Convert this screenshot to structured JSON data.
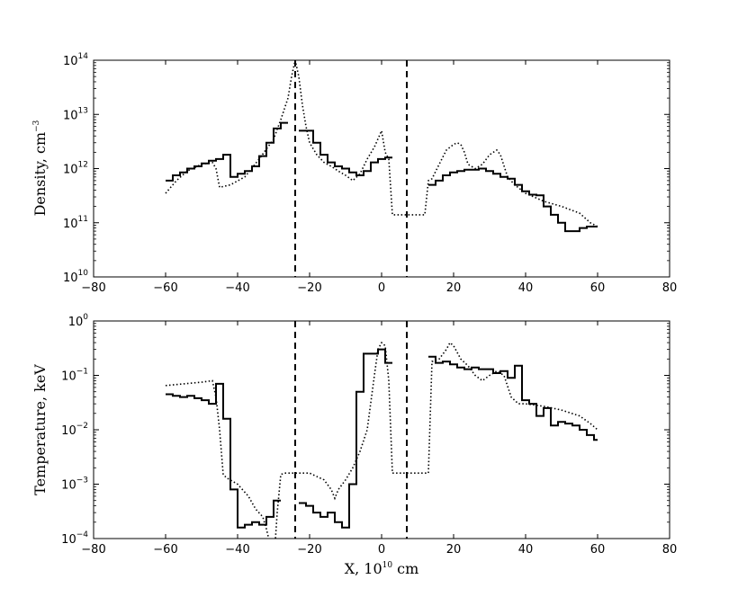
{
  "chart_data": [
    {
      "type": "line",
      "ylabel": "Density, cm",
      "ylabel_sup": "−3",
      "yscale": "log",
      "xlim": [
        -80,
        80
      ],
      "ylim_exp": [
        10,
        14
      ],
      "xticks": [
        -80,
        -60,
        -40,
        -20,
        0,
        20,
        40,
        60,
        80
      ],
      "yticks_exp": [
        10,
        11,
        12,
        13,
        14
      ],
      "tick_base": "10",
      "vlines": [
        -24,
        7
      ],
      "series": [
        {
          "style": "solid step",
          "segments": [
            {
              "x": [
                -60,
                -58,
                -56,
                -54,
                -52,
                -50,
                -48,
                -46,
                -44,
                -42,
                -40,
                -38,
                -36,
                -34,
                -32,
                -30,
                -28,
                -26
              ],
              "y": [
                600000000000.0,
                750000000000.0,
                850000000000.0,
                1000000000000.0,
                1100000000000.0,
                1250000000000.0,
                1400000000000.0,
                1500000000000.0,
                1800000000000.0,
                700000000000.0,
                800000000000.0,
                900000000000.0,
                1100000000000.0,
                1700000000000.0,
                3000000000000.0,
                5500000000000.0,
                7000000000000.0,
                7000000000000.0
              ]
            },
            {
              "x": [
                -23,
                -21,
                -19,
                -17,
                -15,
                -13,
                -11,
                -9,
                -7,
                -5,
                -3,
                -1,
                1,
                3
              ],
              "y": [
                5000000000000.0,
                5000000000000.0,
                3000000000000.0,
                1800000000000.0,
                1300000000000.0,
                1100000000000.0,
                1000000000000.0,
                850000000000.0,
                750000000000.0,
                900000000000.0,
                1300000000000.0,
                1500000000000.0,
                1600000000000.0,
                1600000000000.0
              ]
            },
            {
              "x": [
                13,
                15,
                17,
                19,
                21,
                23,
                25,
                27,
                29,
                31,
                33,
                35,
                37,
                39,
                41,
                43,
                45,
                47,
                49,
                51,
                53,
                55,
                57,
                59,
                60
              ],
              "y": [
                500000000000.0,
                600000000000.0,
                750000000000.0,
                850000000000.0,
                900000000000.0,
                950000000000.0,
                950000000000.0,
                1000000000000.0,
                900000000000.0,
                800000000000.0,
                700000000000.0,
                650000000000.0,
                500000000000.0,
                380000000000.0,
                330000000000.0,
                320000000000.0,
                200000000000.0,
                140000000000.0,
                100000000000.0,
                70000000000.0,
                70000000000.0,
                80000000000.0,
                85000000000.0,
                85000000000.0,
                85000000000.0
              ]
            }
          ]
        },
        {
          "style": "dotted",
          "segments": [
            {
              "x": [
                -60,
                -57,
                -54,
                -50,
                -47,
                -46,
                -45,
                -42,
                -38,
                -34,
                -30,
                -28,
                -26,
                -25,
                -24,
                -23,
                -22,
                -21,
                -20,
                -18,
                -16,
                -14,
                -12,
                -10,
                -8,
                -6,
                -4,
                -2,
                0,
                1,
                2,
                3,
                5,
                8,
                11,
                12,
                13,
                14,
                16,
                18,
                20,
                21,
                22,
                23,
                24,
                26,
                28,
                30,
                32,
                33,
                35,
                37,
                40,
                45,
                50,
                55,
                58,
                60
              ],
              "y": [
                350000000000.0,
                600000000000.0,
                900000000000.0,
                1200000000000.0,
                1300000000000.0,
                1000000000000.0,
                450000000000.0,
                500000000000.0,
                700000000000.0,
                1500000000000.0,
                3500000000000.0,
                8000000000000.0,
                20000000000000.0,
                50000000000000.0,
                100000000000000.0,
                50000000000000.0,
                15000000000000.0,
                6000000000000.0,
                3000000000000.0,
                1800000000000.0,
                1300000000000.0,
                1100000000000.0,
                900000000000.0,
                750000000000.0,
                600000000000.0,
                800000000000.0,
                1500000000000.0,
                2500000000000.0,
                5000000000000.0,
                2000000000000.0,
                1500000000000.0,
                140000000000.0,
                140000000000.0,
                140000000000.0,
                140000000000.0,
                140000000000.0,
                600000000000.0,
                650000000000.0,
                1200000000000.0,
                2200000000000.0,
                2800000000000.0,
                3000000000000.0,
                2800000000000.0,
                2000000000000.0,
                1200000000000.0,
                1000000000000.0,
                1200000000000.0,
                1800000000000.0,
                2200000000000.0,
                1800000000000.0,
                700000000000.0,
                500000000000.0,
                350000000000.0,
                250000000000.0,
                200000000000.0,
                150000000000.0,
                100000000000.0,
                85000000000.0
              ]
            }
          ]
        }
      ]
    },
    {
      "type": "line",
      "ylabel": "Temperature, keV",
      "xlabel": "X, 10",
      "xlabel_sup": "10",
      "xlabel_unit": " cm",
      "yscale": "log",
      "xlim": [
        -80,
        80
      ],
      "ylim_exp": [
        -4,
        0
      ],
      "xticks": [
        -80,
        -60,
        -40,
        -20,
        0,
        20,
        40,
        60,
        80
      ],
      "yticks_exp": [
        -4,
        -3,
        -2,
        -1,
        0
      ],
      "tick_base": "10",
      "vlines": [
        -24,
        7
      ],
      "series": [
        {
          "style": "solid step",
          "segments": [
            {
              "x": [
                -60,
                -58,
                -56,
                -54,
                -52,
                -50,
                -48,
                -46,
                -44,
                -42,
                -40,
                -38,
                -36,
                -34,
                -32,
                -30,
                -28
              ],
              "y": [
                0.045,
                0.042,
                0.04,
                0.042,
                0.038,
                0.035,
                0.03,
                0.07,
                0.016,
                0.0008,
                0.00016,
                0.00018,
                0.0002,
                0.00018,
                0.00025,
                0.0005,
                0.0005
              ]
            },
            {
              "x": [
                -23,
                -21,
                -19,
                -17,
                -15,
                -13,
                -11,
                -9,
                -7,
                -5,
                -3,
                -1,
                1,
                3
              ],
              "y": [
                0.00045,
                0.0004,
                0.0003,
                0.00025,
                0.0003,
                0.0002,
                0.00016,
                0.001,
                0.05,
                0.25,
                0.25,
                0.3,
                0.17,
                0.17
              ]
            },
            {
              "x": [
                13,
                15,
                17,
                19,
                21,
                23,
                25,
                27,
                29,
                31,
                33,
                35,
                37,
                39,
                41,
                43,
                45,
                47,
                49,
                51,
                53,
                55,
                57,
                59,
                60
              ],
              "y": [
                0.22,
                0.17,
                0.18,
                0.16,
                0.14,
                0.13,
                0.14,
                0.13,
                0.13,
                0.11,
                0.12,
                0.09,
                0.15,
                0.035,
                0.03,
                0.018,
                0.025,
                0.012,
                0.014,
                0.013,
                0.012,
                0.01,
                0.008,
                0.0065,
                0.0065
              ]
            }
          ]
        },
        {
          "style": "dotted",
          "segments": [
            {
              "x": [
                -60,
                -55,
                -50,
                -47,
                -46,
                -45,
                -44,
                -43,
                -40,
                -37,
                -35,
                -33,
                -32,
                -31,
                -30,
                -29,
                -28,
                -27,
                -26,
                -25,
                -24,
                -20,
                -16,
                -14,
                -13,
                -12,
                -10,
                -8,
                -6,
                -4,
                -2,
                -1,
                0,
                1,
                2,
                3,
                5,
                8,
                11,
                12,
                13,
                14,
                16,
                18,
                19,
                20,
                22,
                24,
                26,
                28,
                30,
                32,
                34,
                36,
                38,
                40,
                45,
                50,
                55,
                58,
                60
              ],
              "y": [
                0.065,
                0.07,
                0.075,
                0.08,
                0.04,
                0.01,
                0.0015,
                0.0013,
                0.001,
                0.0006,
                0.00035,
                0.00025,
                0.00015,
                8e-05,
                3e-05,
                0.0003,
                0.0015,
                0.0016,
                0.0016,
                0.0016,
                0.0016,
                0.0016,
                0.0012,
                0.0008,
                0.00055,
                0.0008,
                0.0012,
                0.002,
                0.004,
                0.01,
                0.1,
                0.3,
                0.4,
                0.35,
                0.08,
                0.0016,
                0.0016,
                0.0016,
                0.0016,
                0.0016,
                0.0016,
                0.18,
                0.2,
                0.3,
                0.4,
                0.35,
                0.2,
                0.15,
                0.1,
                0.08,
                0.1,
                0.12,
                0.1,
                0.04,
                0.03,
                0.03,
                0.027,
                0.023,
                0.018,
                0.013,
                0.01
              ]
            }
          ]
        }
      ]
    }
  ]
}
